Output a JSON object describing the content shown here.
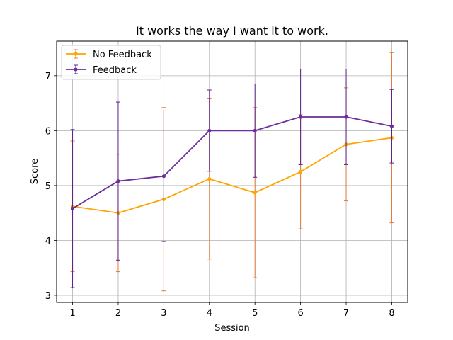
{
  "chart_data": {
    "type": "line",
    "title": "It works the way I want it to work.",
    "xlabel": "Session",
    "ylabel": "Score",
    "x": [
      1,
      2,
      3,
      4,
      5,
      6,
      7,
      8
    ],
    "xlim": [
      0.65,
      8.35
    ],
    "ylim": [
      2.87,
      7.63
    ],
    "yticks": [
      3,
      4,
      5,
      6,
      7
    ],
    "grid": true,
    "legend_position": "top-left",
    "series": [
      {
        "name": "No Feedback",
        "color": "#ffa500",
        "errorbar_color": "#e07b39",
        "values": [
          4.62,
          4.5,
          4.75,
          5.12,
          4.87,
          5.25,
          5.75,
          5.87
        ],
        "error": [
          1.19,
          1.07,
          1.67,
          1.46,
          1.55,
          1.04,
          1.03,
          1.55
        ]
      },
      {
        "name": "Feedback",
        "color": "#6a2f9a",
        "errorbar_color": "#5a1f8a",
        "values": [
          4.58,
          5.08,
          5.17,
          6.0,
          6.0,
          6.25,
          6.25,
          6.08
        ],
        "error": [
          1.44,
          1.44,
          1.19,
          0.74,
          0.85,
          0.87,
          0.87,
          0.67
        ]
      }
    ]
  }
}
